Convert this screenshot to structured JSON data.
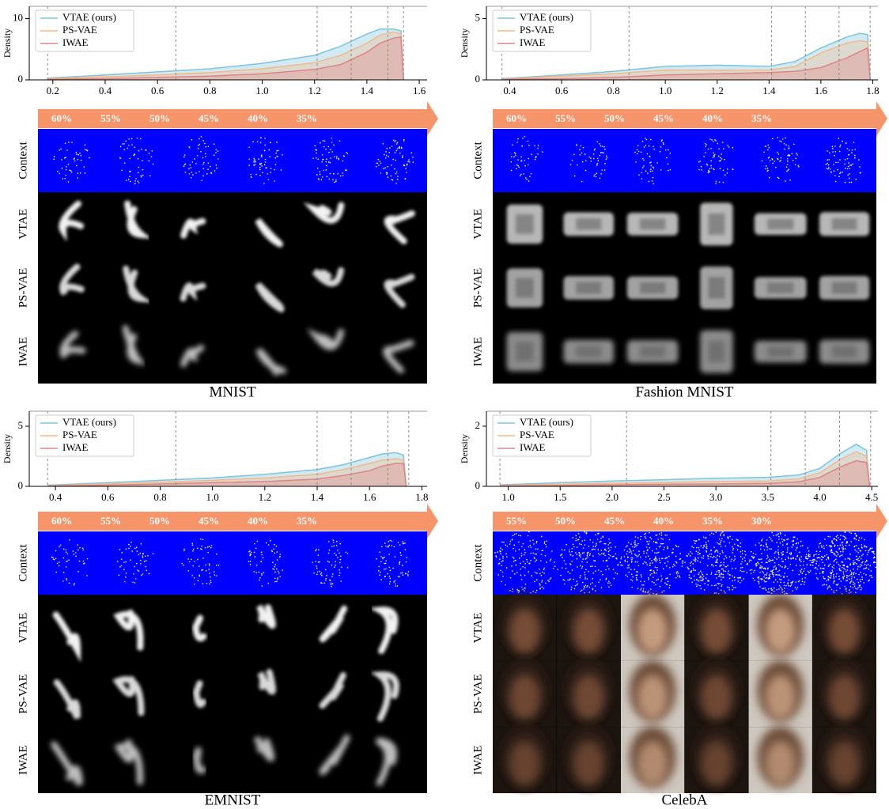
{
  "chart_data": [
    {
      "type": "area",
      "ylabel": "Density",
      "legend": "upper left",
      "x": [
        0.18,
        0.4,
        0.6,
        0.8,
        1.0,
        1.2,
        1.3,
        1.4,
        1.45,
        1.5,
        1.53,
        1.54
      ],
      "series": [
        {
          "name": "VTAE (ours)",
          "color": "#7ec4dc",
          "values": [
            0.3,
            0.8,
            1.3,
            1.8,
            2.7,
            4.0,
            5.5,
            7.5,
            8.3,
            8.3,
            8.0,
            0
          ]
        },
        {
          "name": "PS-VAE",
          "color": "#f4b98a",
          "values": [
            0.2,
            0.5,
            0.8,
            1.2,
            1.8,
            2.8,
            4.0,
            6.0,
            7.3,
            7.8,
            7.5,
            0
          ]
        },
        {
          "name": "IWAE",
          "color": "#df8585",
          "values": [
            0.1,
            0.2,
            0.4,
            0.6,
            1.0,
            1.7,
            2.5,
            4.5,
            6.0,
            6.8,
            7.0,
            0
          ]
        }
      ],
      "vlines": [
        0.18,
        0.67,
        1.21,
        1.34,
        1.48,
        1.54
      ],
      "xlim": [
        0.11,
        1.63
      ],
      "ylim": [
        0,
        12
      ],
      "xticks": [
        0.2,
        0.4,
        0.6,
        0.8,
        {
          "value": 1,
          "label": "1.0"
        },
        1.2,
        1.4,
        1.6
      ],
      "yticks": [
        0,
        10
      ]
    },
    {
      "type": "area",
      "ylabel": "Density",
      "legend": "upper left",
      "x": [
        0.37,
        0.6,
        0.8,
        1.0,
        1.2,
        1.4,
        1.5,
        1.6,
        1.7,
        1.75,
        1.78,
        1.79
      ],
      "series": [
        {
          "name": "VTAE (ours)",
          "color": "#7ec4dc",
          "values": [
            0.1,
            0.4,
            0.7,
            1.1,
            1.2,
            1.1,
            1.5,
            2.6,
            3.5,
            3.8,
            3.7,
            0
          ]
        },
        {
          "name": "PS-VAE",
          "color": "#f4b98a",
          "values": [
            0.05,
            0.3,
            0.5,
            0.8,
            0.8,
            0.8,
            1.1,
            2.2,
            3.0,
            3.2,
            3.1,
            0
          ]
        },
        {
          "name": "IWAE",
          "color": "#df8585",
          "values": [
            0.05,
            0.1,
            0.2,
            0.4,
            0.5,
            0.6,
            0.7,
            1.0,
            1.8,
            2.3,
            2.6,
            0
          ]
        }
      ],
      "vlines": [
        0.37,
        0.86,
        1.41,
        1.54,
        1.67,
        1.79
      ],
      "xlim": [
        0.31,
        1.82
      ],
      "ylim": [
        0,
        6
      ],
      "xticks": [
        0.4,
        0.6,
        0.8,
        {
          "value": 1,
          "label": "1.0"
        },
        1.2,
        1.4,
        1.6,
        1.8
      ],
      "yticks": [
        0,
        5
      ]
    },
    {
      "type": "area",
      "ylabel": "Density",
      "legend": "upper left",
      "x": [
        0.37,
        0.6,
        0.8,
        1.0,
        1.2,
        1.4,
        1.5,
        1.6,
        1.65,
        1.7,
        1.73,
        1.74
      ],
      "series": [
        {
          "name": "VTAE (ours)",
          "color": "#7ec4dc",
          "values": [
            0.1,
            0.3,
            0.5,
            0.7,
            1.0,
            1.4,
            1.8,
            2.4,
            2.7,
            2.8,
            2.6,
            0
          ]
        },
        {
          "name": "PS-VAE",
          "color": "#f4b98a",
          "values": [
            0.05,
            0.2,
            0.35,
            0.5,
            0.7,
            1.0,
            1.4,
            1.9,
            2.2,
            2.3,
            2.2,
            0
          ]
        },
        {
          "name": "IWAE",
          "color": "#df8585",
          "values": [
            0.02,
            0.1,
            0.2,
            0.3,
            0.4,
            0.6,
            0.9,
            1.3,
            1.7,
            1.9,
            1.9,
            0
          ]
        }
      ],
      "vlines": [
        0.37,
        0.86,
        1.4,
        1.53,
        1.67,
        1.75
      ],
      "xlim": [
        0.3,
        1.82
      ],
      "ylim": [
        0,
        6.25
      ],
      "xticks": [
        0.4,
        0.6,
        0.8,
        {
          "value": 1,
          "label": "1.0"
        },
        1.2,
        1.4,
        1.6,
        1.8
      ],
      "yticks": [
        0,
        5
      ]
    },
    {
      "type": "area",
      "ylabel": "Density",
      "legend": "upper left",
      "x": [
        0.92,
        1.5,
        2.0,
        2.5,
        3.0,
        3.5,
        3.8,
        4.0,
        4.2,
        4.35,
        4.45,
        4.48
      ],
      "series": [
        {
          "name": "VTAE (ours)",
          "color": "#7ec4dc",
          "values": [
            0.05,
            0.12,
            0.18,
            0.22,
            0.27,
            0.3,
            0.38,
            0.6,
            1.1,
            1.4,
            1.2,
            0
          ]
        },
        {
          "name": "PS-VAE",
          "color": "#f4b98a",
          "values": [
            0.03,
            0.07,
            0.1,
            0.13,
            0.16,
            0.18,
            0.25,
            0.45,
            0.9,
            1.15,
            1.0,
            0
          ]
        },
        {
          "name": "IWAE",
          "color": "#df8585",
          "values": [
            0.01,
            0.03,
            0.05,
            0.07,
            0.08,
            0.1,
            0.15,
            0.3,
            0.65,
            0.85,
            0.8,
            0
          ]
        }
      ],
      "vlines": [
        0.92,
        2.14,
        3.53,
        3.86,
        4.19,
        4.49
      ],
      "xlim": [
        0.79,
        4.56
      ],
      "ylim": [
        0,
        2.5
      ],
      "xticks": [
        {
          "value": 1,
          "label": "1.0"
        },
        1.5,
        {
          "value": 2,
          "label": "2.0"
        },
        2.5,
        {
          "value": 3,
          "label": "3.0"
        },
        3.5,
        {
          "value": 4,
          "label": "4.0"
        },
        4.5
      ],
      "yticks": [
        0,
        2
      ]
    }
  ],
  "panels": [
    {
      "title": "MNIST",
      "levels": [
        "60%",
        "55%",
        "50%",
        "45%",
        "40%",
        "35%"
      ],
      "rows": [
        "Context",
        "VTAE",
        "PS-VAE",
        "IWAE"
      ]
    },
    {
      "title": "Fashion MNIST",
      "levels": [
        "60%",
        "55%",
        "50%",
        "45%",
        "40%",
        "35%"
      ],
      "rows": [
        "Context",
        "VTAE",
        "PS-VAE",
        "IWAE"
      ]
    },
    {
      "title": "EMNIST",
      "levels": [
        "60%",
        "55%",
        "50%",
        "45%",
        "40%",
        "35%"
      ],
      "rows": [
        "Context",
        "VTAE",
        "PS-VAE",
        "IWAE"
      ]
    },
    {
      "title": "CelebA",
      "levels": [
        "55%",
        "50%",
        "45%",
        "40%",
        "35%",
        "30%"
      ],
      "rows": [
        "Context",
        "VTAE",
        "PS-VAE",
        "IWAE"
      ]
    }
  ]
}
